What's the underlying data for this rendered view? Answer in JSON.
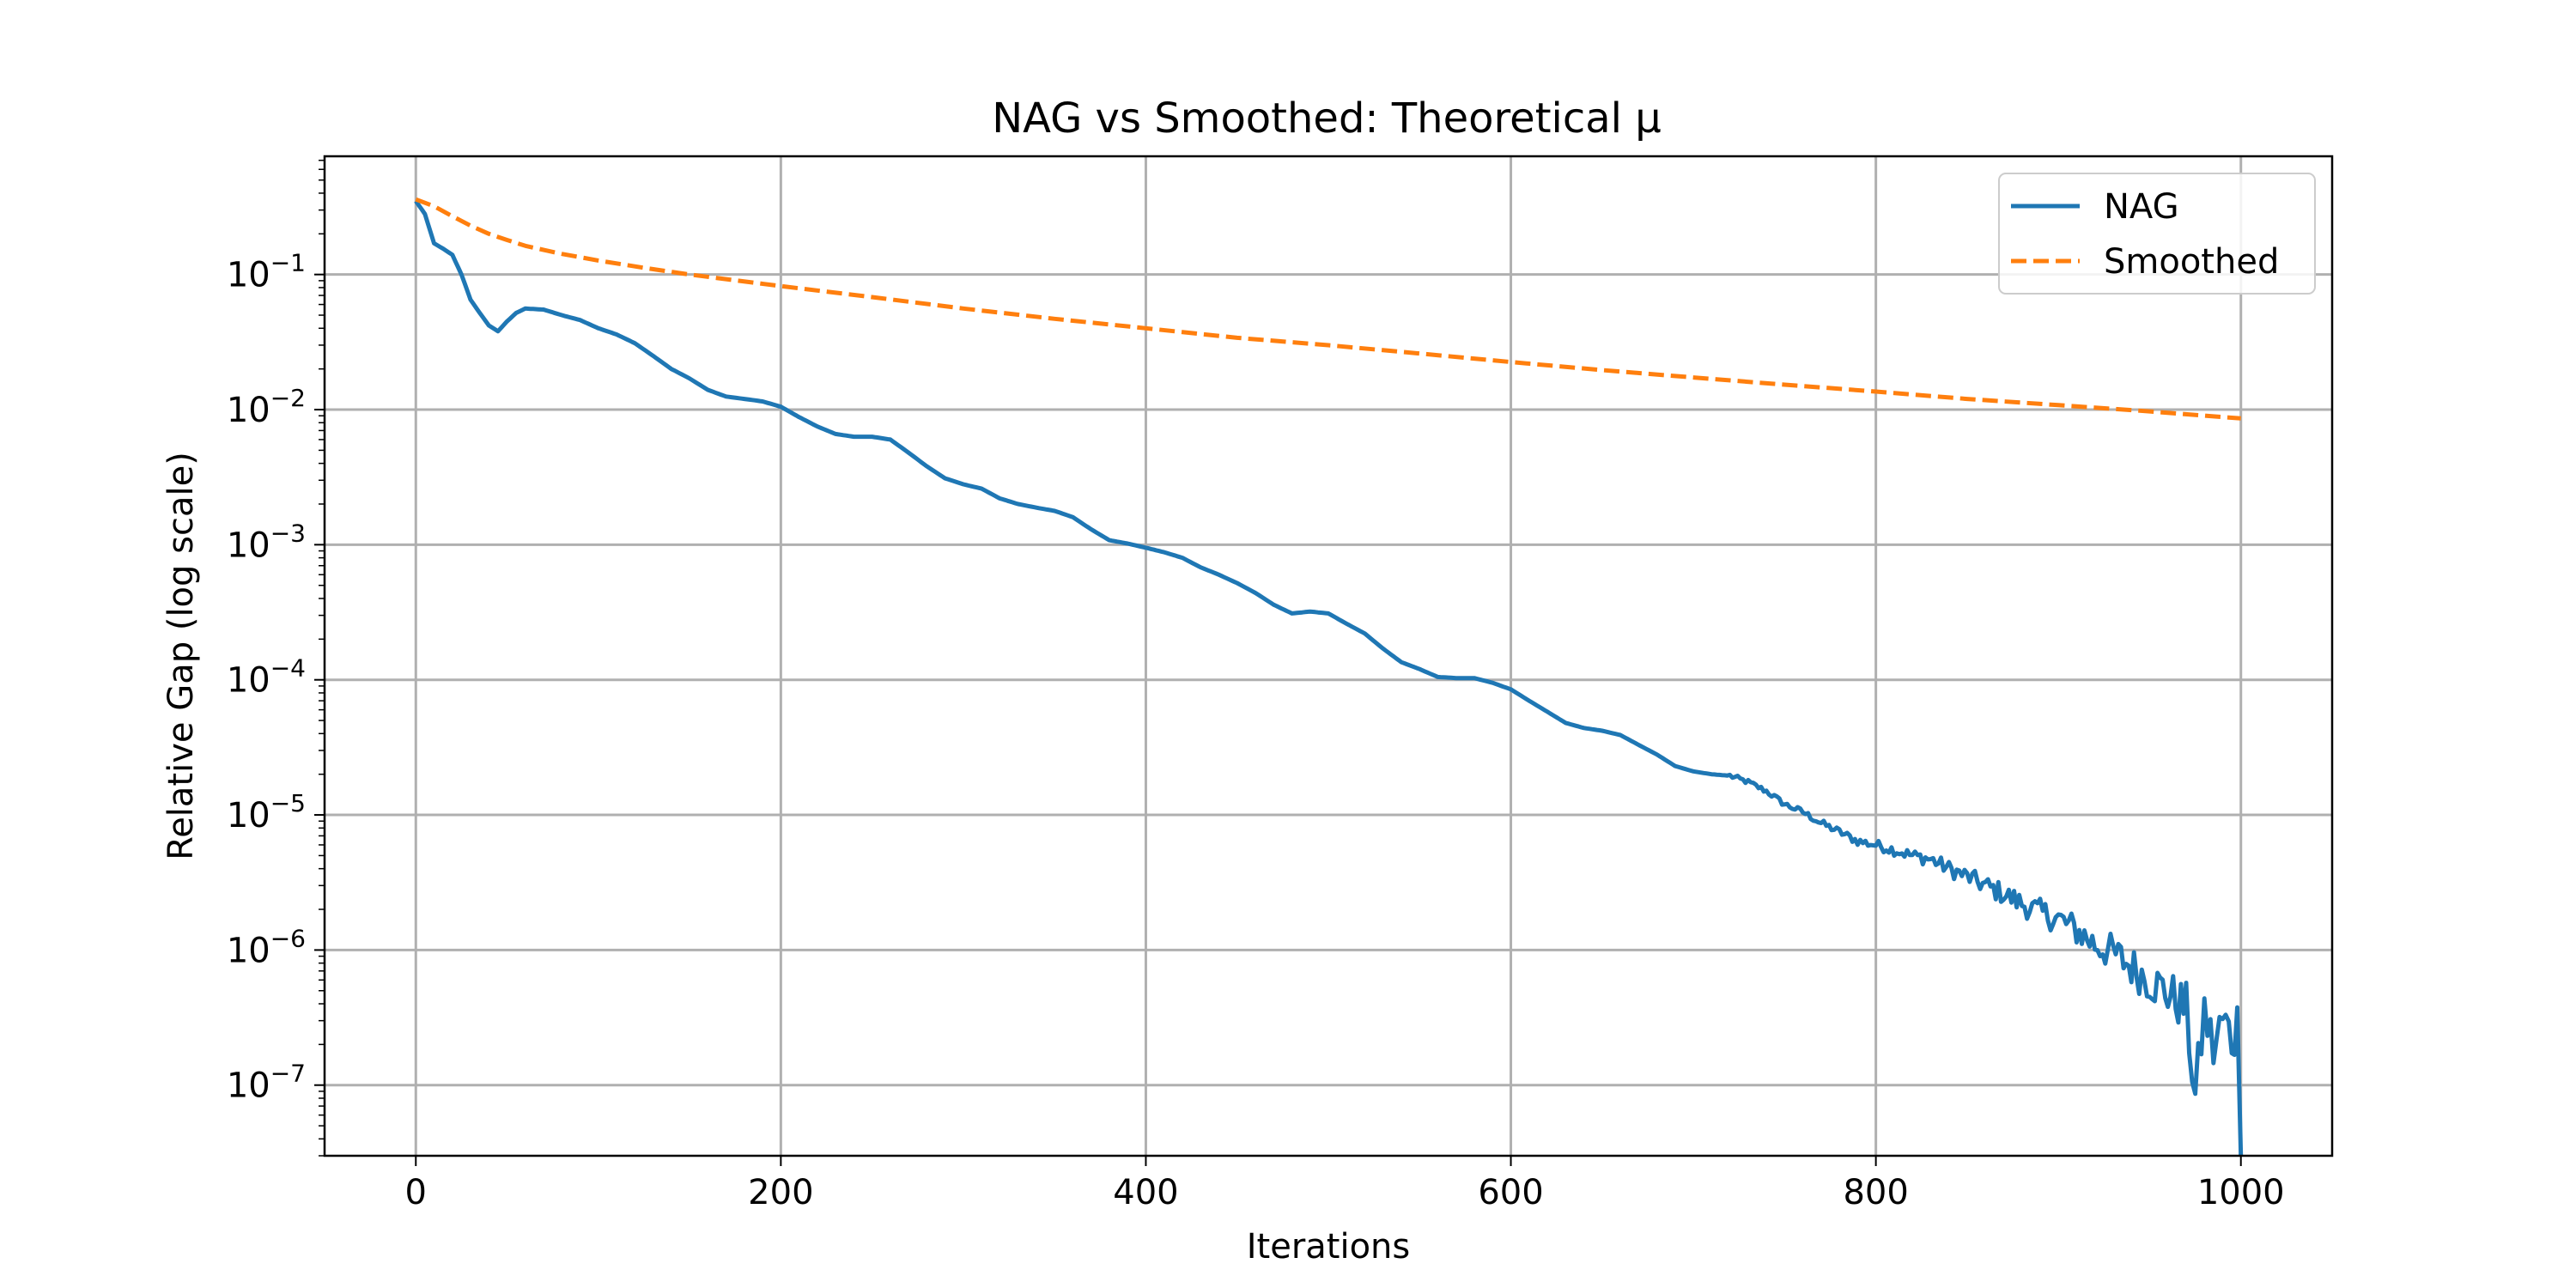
{
  "chart_data": {
    "type": "line",
    "title": "NAG vs Smoothed: Theoretical μ",
    "xlabel": "Iterations",
    "ylabel": "Relative Gap (log scale)",
    "xlim": [
      -50,
      1050
    ],
    "ylim": [
      3e-08,
      0.75
    ],
    "yscale": "log",
    "grid": true,
    "legend_position": "top-right",
    "x_ticks": [
      0,
      200,
      400,
      600,
      800,
      1000
    ],
    "y_ticks": [
      {
        "value": 1e-07,
        "base": "10",
        "exp": "−7"
      },
      {
        "value": 1e-06,
        "base": "10",
        "exp": "−6"
      },
      {
        "value": 1e-05,
        "base": "10",
        "exp": "−5"
      },
      {
        "value": 0.0001,
        "base": "10",
        "exp": "−4"
      },
      {
        "value": 0.001,
        "base": "10",
        "exp": "−3"
      },
      {
        "value": 0.01,
        "base": "10",
        "exp": "−2"
      },
      {
        "value": 0.1,
        "base": "10",
        "exp": "−1"
      }
    ],
    "series": [
      {
        "name": "NAG",
        "color": "#1f77b4",
        "style": "solid",
        "noisy_from": 720,
        "points": [
          [
            0,
            0.35
          ],
          [
            5,
            0.28
          ],
          [
            10,
            0.17
          ],
          [
            15,
            0.155
          ],
          [
            20,
            0.14
          ],
          [
            25,
            0.1
          ],
          [
            30,
            0.065
          ],
          [
            35,
            0.052
          ],
          [
            40,
            0.042
          ],
          [
            45,
            0.038
          ],
          [
            50,
            0.045
          ],
          [
            55,
            0.052
          ],
          [
            60,
            0.056
          ],
          [
            70,
            0.055
          ],
          [
            80,
            0.05
          ],
          [
            90,
            0.046
          ],
          [
            100,
            0.04
          ],
          [
            110,
            0.036
          ],
          [
            120,
            0.031
          ],
          [
            130,
            0.025
          ],
          [
            140,
            0.02
          ],
          [
            150,
            0.017
          ],
          [
            160,
            0.014
          ],
          [
            170,
            0.0125
          ],
          [
            180,
            0.012
          ],
          [
            190,
            0.0115
          ],
          [
            200,
            0.0105
          ],
          [
            210,
            0.0088
          ],
          [
            220,
            0.0075
          ],
          [
            230,
            0.0066
          ],
          [
            240,
            0.0063
          ],
          [
            250,
            0.0063
          ],
          [
            260,
            0.006
          ],
          [
            270,
            0.0048
          ],
          [
            280,
            0.0038
          ],
          [
            290,
            0.0031
          ],
          [
            300,
            0.0028
          ],
          [
            310,
            0.0026
          ],
          [
            320,
            0.0022
          ],
          [
            330,
            0.002
          ],
          [
            340,
            0.00188
          ],
          [
            350,
            0.00178
          ],
          [
            360,
            0.0016
          ],
          [
            370,
            0.0013
          ],
          [
            380,
            0.00108
          ],
          [
            390,
            0.00102
          ],
          [
            400,
            0.00095
          ],
          [
            410,
            0.00088
          ],
          [
            420,
            0.0008
          ],
          [
            430,
            0.00068
          ],
          [
            440,
            0.0006
          ],
          [
            450,
            0.00052
          ],
          [
            460,
            0.00044
          ],
          [
            470,
            0.00036
          ],
          [
            480,
            0.00031
          ],
          [
            490,
            0.00032
          ],
          [
            500,
            0.00031
          ],
          [
            510,
            0.00026
          ],
          [
            520,
            0.00022
          ],
          [
            530,
            0.00017
          ],
          [
            540,
            0.000135
          ],
          [
            550,
            0.00012
          ],
          [
            560,
            0.000105
          ],
          [
            570,
            0.000103
          ],
          [
            580,
            0.000103
          ],
          [
            590,
            9.5e-05
          ],
          [
            600,
            8.5e-05
          ],
          [
            610,
            7e-05
          ],
          [
            620,
            5.8e-05
          ],
          [
            630,
            4.8e-05
          ],
          [
            640,
            4.4e-05
          ],
          [
            650,
            4.2e-05
          ],
          [
            660,
            3.9e-05
          ],
          [
            670,
            3.3e-05
          ],
          [
            680,
            2.8e-05
          ],
          [
            690,
            2.3e-05
          ],
          [
            700,
            2.1e-05
          ],
          [
            710,
            2e-05
          ],
          [
            720,
            1.95e-05
          ],
          [
            730,
            1.75e-05
          ],
          [
            740,
            1.5e-05
          ],
          [
            750,
            1.2e-05
          ],
          [
            760,
            1.05e-05
          ],
          [
            770,
            8.7e-06
          ],
          [
            780,
            7.5e-06
          ],
          [
            790,
            6.4e-06
          ],
          [
            800,
            6e-06
          ],
          [
            810,
            5.5e-06
          ],
          [
            820,
            5e-06
          ],
          [
            830,
            4.7e-06
          ],
          [
            840,
            4e-06
          ],
          [
            850,
            3.5e-06
          ],
          [
            860,
            3e-06
          ],
          [
            870,
            2.6e-06
          ],
          [
            880,
            2.2e-06
          ],
          [
            890,
            1.9e-06
          ],
          [
            900,
            1.7e-06
          ],
          [
            910,
            1.4e-06
          ],
          [
            920,
            1.1e-06
          ],
          [
            930,
            9.5e-07
          ],
          [
            940,
            7.5e-07
          ],
          [
            950,
            6e-07
          ],
          [
            960,
            4.8e-07
          ],
          [
            970,
            3.7e-07
          ],
          [
            975,
            8e-08
          ],
          [
            980,
            3.5e-07
          ],
          [
            985,
            1.8e-07
          ],
          [
            990,
            3e-07
          ],
          [
            995,
            2.2e-07
          ],
          [
            998,
            2.8e-07
          ],
          [
            1000,
            3e-08
          ]
        ]
      },
      {
        "name": "Smoothed",
        "color": "#ff7f0e",
        "style": "dashed",
        "points": [
          [
            0,
            0.36
          ],
          [
            10,
            0.32
          ],
          [
            20,
            0.27
          ],
          [
            30,
            0.23
          ],
          [
            40,
            0.2
          ],
          [
            50,
            0.18
          ],
          [
            60,
            0.163
          ],
          [
            80,
            0.142
          ],
          [
            100,
            0.127
          ],
          [
            125,
            0.112
          ],
          [
            150,
            0.1
          ],
          [
            200,
            0.082
          ],
          [
            250,
            0.068
          ],
          [
            300,
            0.056
          ],
          [
            350,
            0.047
          ],
          [
            400,
            0.04
          ],
          [
            450,
            0.034
          ],
          [
            500,
            0.03
          ],
          [
            550,
            0.026
          ],
          [
            600,
            0.0225
          ],
          [
            650,
            0.0196
          ],
          [
            700,
            0.0173
          ],
          [
            750,
            0.0153
          ],
          [
            800,
            0.0136
          ],
          [
            850,
            0.012
          ],
          [
            900,
            0.0108
          ],
          [
            950,
            0.0097
          ],
          [
            1000,
            0.0086
          ]
        ]
      }
    ]
  }
}
